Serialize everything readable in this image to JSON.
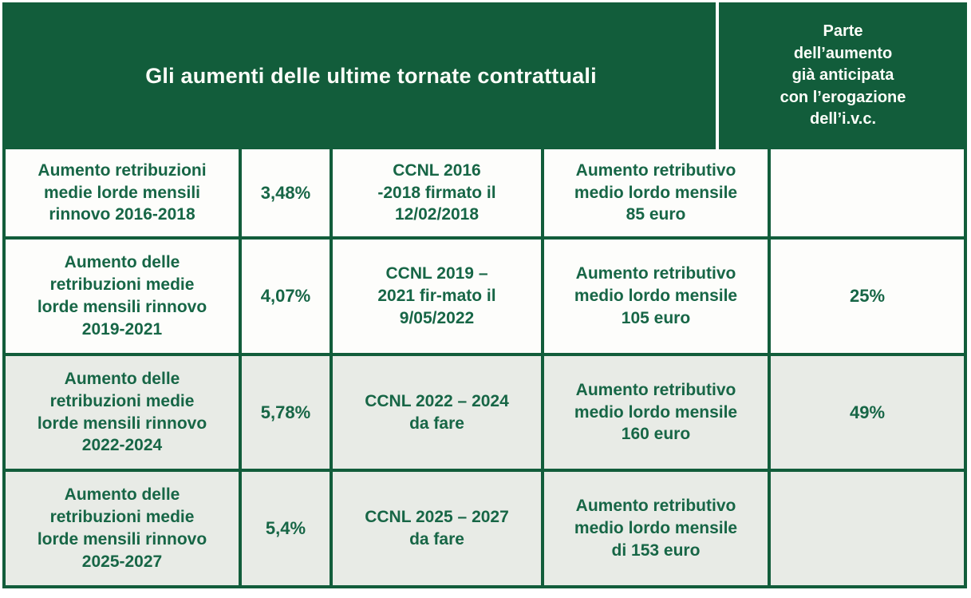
{
  "header": {
    "title": "Gli aumenti delle ultime tornate contrattuali",
    "ivc_column": "Parte\ndell’aumento\ngià anticipata\ncon l’erogazione\ndell’i.v.c."
  },
  "rows": [
    {
      "label": "Aumento retribuzioni\nmedie lorde mensili\nrinnovo 2016-2018",
      "percentage": "3,48%",
      "ccnl": "CCNL 2016\n-2018 firmato il\n12/02/2018",
      "increase": "Aumento retributivo\nmedio lordo mensile\n85 euro",
      "ivc_share": ""
    },
    {
      "label": "Aumento delle\nretribuzioni medie\nlorde mensili rinnovo\n2019-2021",
      "percentage": "4,07%",
      "ccnl": "CCNL 2019 –\n2021 fir-mato il\n9/05/2022",
      "increase": "Aumento retributivo\nmedio lordo mensile\n105 euro",
      "ivc_share": "25%"
    },
    {
      "label": "Aumento delle\nretribuzioni medie\nlorde mensili rinnovo\n2022-2024",
      "percentage": "5,78%",
      "ccnl": "CCNL 2022 – 2024\nda fare",
      "increase": "Aumento retributivo\nmedio lordo mensile\n160 euro",
      "ivc_share": "49%"
    },
    {
      "label": "Aumento delle\nretribuzioni medie\nlorde mensili rinnovo\n2025-2027",
      "percentage": "5,4%",
      "ccnl": "CCNL 2025 – 2027\nda fare",
      "increase": "Aumento retributivo\nmedio lordo mensile\ndi 153 euro",
      "ivc_share": ""
    }
  ],
  "colors": {
    "header_green": "#125D3B",
    "border_green": "#125D3B",
    "text_green": "#176646",
    "header_text": "#FCFDF8",
    "row_white": "#FDFDFB",
    "row_alt": "#E8EBE6"
  },
  "chart_data": {
    "type": "table",
    "title": "Gli aumenti delle ultime tornate contrattuali",
    "last_column_header": "Parte dell’aumento già anticipata con l’erogazione dell’i.v.c.",
    "rows": [
      [
        "Aumento retribuzioni medie lorde mensili rinnovo 2016-2018",
        "3,48%",
        "CCNL 2016 -2018 firmato il 12/02/2018",
        "Aumento retributivo medio lordo mensile 85 euro",
        ""
      ],
      [
        "Aumento delle retribuzioni medie lorde mensili rinnovo 2019-2021",
        "4,07%",
        "CCNL 2019 – 2021 fir-mato il 9/05/2022",
        "Aumento retributivo medio lordo mensile 105 euro",
        "25%"
      ],
      [
        "Aumento delle retribuzioni medie lorde mensili rinnovo 2022-2024",
        "5,78%",
        "CCNL 2022 – 2024 da fare",
        "Aumento retributivo medio lordo mensile 160 euro",
        "49%"
      ],
      [
        "Aumento delle retribuzioni medie lorde mensili rinnovo 2025-2027",
        "5,4%",
        "CCNL 2025 – 2027 da fare",
        "Aumento retributivo medio lordo mensile di 153 euro",
        ""
      ]
    ],
    "percentages_numeric": [
      3.48,
      4.07,
      5.78,
      5.4
    ],
    "monthly_increase_euro": [
      85,
      105,
      160,
      153
    ],
    "ivc_share_numeric": [
      null,
      25,
      49,
      null
    ]
  }
}
